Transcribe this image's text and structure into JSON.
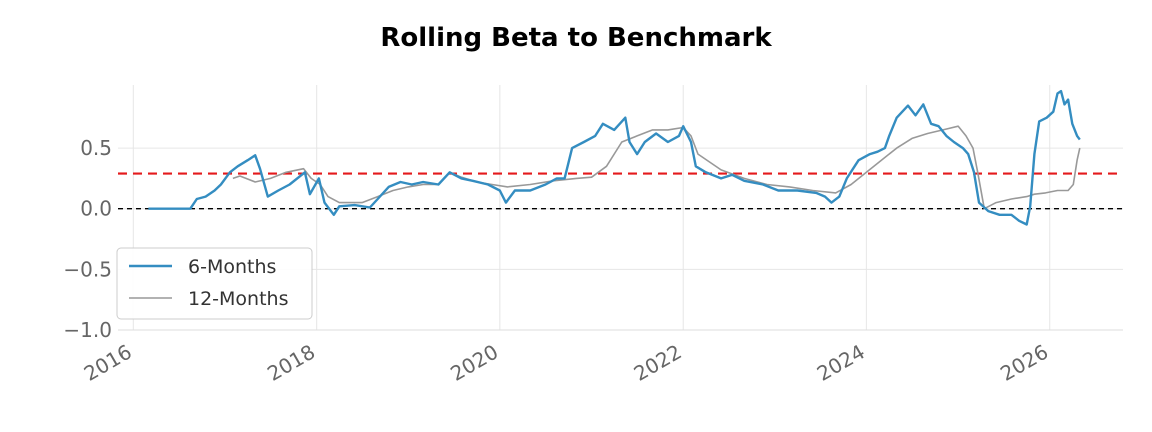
{
  "chart_data": {
    "type": "line",
    "title": "Rolling Beta to Benchmark",
    "xlabel": "",
    "ylabel": "",
    "x_ticks": [
      "2016",
      "2018",
      "2020",
      "2022",
      "2024",
      "2026"
    ],
    "y_ticks": [
      "0.5",
      "0.0",
      "−0.5",
      "−1.0"
    ],
    "y_tick_values": [
      0.5,
      0.0,
      -0.5,
      -1.0
    ],
    "xlim": [
      "2015-11-01",
      "2026-10-20"
    ],
    "ylim": [
      -1.0,
      1.02
    ],
    "grid": true,
    "legend_position": "lower-left",
    "reference_lines": [
      {
        "value": 0.29,
        "color": "#e41a1c",
        "style": "dashed"
      },
      {
        "value": 0.0,
        "color": "#000000",
        "style": "dashed"
      }
    ],
    "series": [
      {
        "name": "6-Months",
        "color": "#348dc1",
        "points": [
          [
            "2016-03-01",
            0.0
          ],
          [
            "2016-06-01",
            0.0
          ],
          [
            "2016-08-15",
            0.0
          ],
          [
            "2016-09-10",
            0.08
          ],
          [
            "2016-10-15",
            0.1
          ],
          [
            "2016-11-20",
            0.15
          ],
          [
            "2016-12-15",
            0.2
          ],
          [
            "2017-01-20",
            0.3
          ],
          [
            "2017-02-20",
            0.35
          ],
          [
            "2017-04-01",
            0.4
          ],
          [
            "2017-05-01",
            0.44
          ],
          [
            "2017-05-20",
            0.33
          ],
          [
            "2017-06-20",
            0.1
          ],
          [
            "2017-08-01",
            0.15
          ],
          [
            "2017-09-15",
            0.2
          ],
          [
            "2017-11-15",
            0.3
          ],
          [
            "2017-12-05",
            0.12
          ],
          [
            "2018-01-10",
            0.25
          ],
          [
            "2018-02-01",
            0.05
          ],
          [
            "2018-03-10",
            -0.05
          ],
          [
            "2018-04-01",
            0.02
          ],
          [
            "2018-06-01",
            0.03
          ],
          [
            "2018-08-01",
            0.01
          ],
          [
            "2018-09-01",
            0.08
          ],
          [
            "2018-10-15",
            0.18
          ],
          [
            "2018-12-01",
            0.22
          ],
          [
            "2019-01-15",
            0.2
          ],
          [
            "2019-03-01",
            0.22
          ],
          [
            "2019-05-01",
            0.2
          ],
          [
            "2019-06-15",
            0.3
          ],
          [
            "2019-08-01",
            0.25
          ],
          [
            "2019-09-15",
            0.23
          ],
          [
            "2019-11-15",
            0.2
          ],
          [
            "2020-01-01",
            0.15
          ],
          [
            "2020-01-25",
            0.05
          ],
          [
            "2020-03-01",
            0.15
          ],
          [
            "2020-05-01",
            0.15
          ],
          [
            "2020-07-01",
            0.2
          ],
          [
            "2020-08-15",
            0.25
          ],
          [
            "2020-09-15",
            0.25
          ],
          [
            "2020-10-15",
            0.5
          ],
          [
            "2020-12-01",
            0.55
          ],
          [
            "2021-01-15",
            0.6
          ],
          [
            "2021-02-15",
            0.7
          ],
          [
            "2021-04-01",
            0.65
          ],
          [
            "2021-05-15",
            0.75
          ],
          [
            "2021-06-01",
            0.55
          ],
          [
            "2021-07-01",
            0.45
          ],
          [
            "2021-08-01",
            0.55
          ],
          [
            "2021-09-15",
            0.62
          ],
          [
            "2021-11-01",
            0.55
          ],
          [
            "2021-12-15",
            0.6
          ],
          [
            "2022-01-01",
            0.68
          ],
          [
            "2022-02-01",
            0.55
          ],
          [
            "2022-02-20",
            0.35
          ],
          [
            "2022-04-01",
            0.3
          ],
          [
            "2022-06-01",
            0.25
          ],
          [
            "2022-07-15",
            0.28
          ],
          [
            "2022-09-01",
            0.23
          ],
          [
            "2022-11-15",
            0.2
          ],
          [
            "2023-01-15",
            0.15
          ],
          [
            "2023-04-01",
            0.15
          ],
          [
            "2023-06-15",
            0.13
          ],
          [
            "2023-07-20",
            0.1
          ],
          [
            "2023-08-15",
            0.05
          ],
          [
            "2023-09-15",
            0.1
          ],
          [
            "2023-10-15",
            0.25
          ],
          [
            "2023-11-15",
            0.35
          ],
          [
            "2023-12-01",
            0.4
          ],
          [
            "2024-01-15",
            0.45
          ],
          [
            "2024-02-15",
            0.47
          ],
          [
            "2024-03-15",
            0.5
          ],
          [
            "2024-04-01",
            0.6
          ],
          [
            "2024-05-01",
            0.75
          ],
          [
            "2024-06-15",
            0.85
          ],
          [
            "2024-07-15",
            0.77
          ],
          [
            "2024-08-15",
            0.86
          ],
          [
            "2024-09-15",
            0.7
          ],
          [
            "2024-10-15",
            0.68
          ],
          [
            "2024-11-15",
            0.6
          ],
          [
            "2024-12-15",
            0.55
          ],
          [
            "2025-01-20",
            0.5
          ],
          [
            "2025-02-10",
            0.45
          ],
          [
            "2025-03-05",
            0.3
          ],
          [
            "2025-03-25",
            0.05
          ],
          [
            "2025-05-01",
            -0.02
          ],
          [
            "2025-06-15",
            -0.05
          ],
          [
            "2025-08-01",
            -0.05
          ],
          [
            "2025-09-01",
            -0.1
          ],
          [
            "2025-10-01",
            -0.13
          ],
          [
            "2025-10-15",
            0.02
          ],
          [
            "2025-11-01",
            0.45
          ],
          [
            "2025-11-20",
            0.72
          ],
          [
            "2025-12-20",
            0.75
          ],
          [
            "2026-01-15",
            0.8
          ],
          [
            "2026-02-01",
            0.95
          ],
          [
            "2026-02-15",
            0.97
          ],
          [
            "2026-03-01",
            0.86
          ],
          [
            "2026-03-15",
            0.9
          ],
          [
            "2026-04-01",
            0.7
          ],
          [
            "2026-04-20",
            0.6
          ],
          [
            "2026-05-01",
            0.57
          ]
        ]
      },
      {
        "name": "12-Months",
        "color": "#999999",
        "points": [
          [
            "2017-02-01",
            0.25
          ],
          [
            "2017-03-01",
            0.27
          ],
          [
            "2017-05-01",
            0.22
          ],
          [
            "2017-07-01",
            0.25
          ],
          [
            "2017-09-01",
            0.3
          ],
          [
            "2017-11-10",
            0.33
          ],
          [
            "2017-12-10",
            0.25
          ],
          [
            "2018-01-15",
            0.2
          ],
          [
            "2018-02-15",
            0.1
          ],
          [
            "2018-04-01",
            0.05
          ],
          [
            "2018-07-01",
            0.05
          ],
          [
            "2018-09-01",
            0.1
          ],
          [
            "2018-11-01",
            0.15
          ],
          [
            "2019-01-01",
            0.18
          ],
          [
            "2019-03-01",
            0.2
          ],
          [
            "2019-05-01",
            0.2
          ],
          [
            "2019-06-15",
            0.3
          ],
          [
            "2019-08-01",
            0.26
          ],
          [
            "2019-10-01",
            0.22
          ],
          [
            "2019-12-01",
            0.2
          ],
          [
            "2020-02-01",
            0.18
          ],
          [
            "2020-05-01",
            0.2
          ],
          [
            "2020-08-01",
            0.23
          ],
          [
            "2020-11-01",
            0.25
          ],
          [
            "2021-01-01",
            0.26
          ],
          [
            "2021-03-01",
            0.35
          ],
          [
            "2021-05-01",
            0.55
          ],
          [
            "2021-07-01",
            0.6
          ],
          [
            "2021-09-01",
            0.65
          ],
          [
            "2021-11-01",
            0.65
          ],
          [
            "2022-01-01",
            0.67
          ],
          [
            "2022-02-01",
            0.6
          ],
          [
            "2022-03-01",
            0.45
          ],
          [
            "2022-06-01",
            0.32
          ],
          [
            "2022-09-01",
            0.25
          ],
          [
            "2022-12-01",
            0.2
          ],
          [
            "2023-03-01",
            0.18
          ],
          [
            "2023-06-01",
            0.15
          ],
          [
            "2023-09-01",
            0.13
          ],
          [
            "2023-11-01",
            0.2
          ],
          [
            "2024-01-01",
            0.3
          ],
          [
            "2024-03-01",
            0.4
          ],
          [
            "2024-05-01",
            0.5
          ],
          [
            "2024-07-01",
            0.58
          ],
          [
            "2024-09-01",
            0.62
          ],
          [
            "2024-11-01",
            0.65
          ],
          [
            "2025-01-01",
            0.68
          ],
          [
            "2025-02-01",
            0.6
          ],
          [
            "2025-03-01",
            0.5
          ],
          [
            "2025-03-20",
            0.3
          ],
          [
            "2025-04-15",
            0.0
          ],
          [
            "2025-06-01",
            0.05
          ],
          [
            "2025-08-01",
            0.08
          ],
          [
            "2025-10-01",
            0.1
          ],
          [
            "2025-11-01",
            0.12
          ],
          [
            "2025-12-15",
            0.13
          ],
          [
            "2026-02-01",
            0.15
          ],
          [
            "2026-03-15",
            0.15
          ],
          [
            "2026-04-05",
            0.2
          ],
          [
            "2026-04-20",
            0.4
          ],
          [
            "2026-05-01",
            0.5
          ]
        ]
      }
    ]
  }
}
